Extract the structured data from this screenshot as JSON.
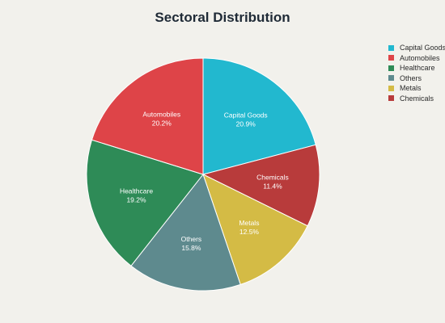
{
  "chart_data": {
    "type": "pie",
    "title": "Sectoral Distribution",
    "legend_position": "top-right",
    "start_angle_deg": 0,
    "direction": "clockwise",
    "slices": [
      {
        "label": "Capital Goods",
        "value": 20.9,
        "value_text": "20.9%",
        "color": "#22b8cf"
      },
      {
        "label": "Chemicals",
        "value": 11.4,
        "value_text": "11.4%",
        "color": "#b83b3b"
      },
      {
        "label": "Metals",
        "value": 12.5,
        "value_text": "12.5%",
        "color": "#d4bb45"
      },
      {
        "label": "Others",
        "value": 15.8,
        "value_text": "15.8%",
        "color": "#5e8a8e"
      },
      {
        "label": "Healthcare",
        "value": 19.2,
        "value_text": "19.2%",
        "color": "#2e8b57"
      },
      {
        "label": "Automobiles",
        "value": 20.2,
        "value_text": "20.2%",
        "color": "#de4448"
      }
    ],
    "legend": [
      {
        "label": "Capital Goods",
        "color": "#22b8cf"
      },
      {
        "label": "Automobiles",
        "color": "#de4448"
      },
      {
        "label": "Healthcare",
        "color": "#2e8b57"
      },
      {
        "label": "Others",
        "color": "#5e8a8e"
      },
      {
        "label": "Metals",
        "color": "#d4bb45"
      },
      {
        "label": "Chemicals",
        "color": "#b83b3b"
      }
    ]
  }
}
